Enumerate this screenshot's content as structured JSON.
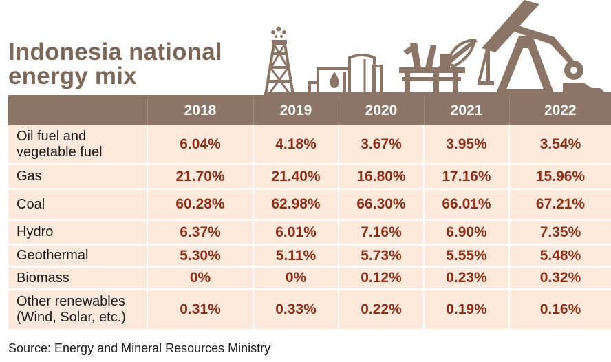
{
  "chart_data": {
    "type": "table",
    "title": [
      "Indonesia national",
      "energy mix"
    ],
    "columns": [
      "2018",
      "2019",
      "2020",
      "2021",
      "2022"
    ],
    "rows": [
      {
        "name": [
          "Oil fuel and",
          "vegetable fuel"
        ],
        "values": [
          "6.04%",
          "4.18%",
          "3.67%",
          "3.95%",
          "3.54%"
        ]
      },
      {
        "name": [
          "Gas"
        ],
        "values": [
          "21.70%",
          "21.40%",
          "16.80%",
          "17.16%",
          "15.96%"
        ]
      },
      {
        "name": [
          "Coal"
        ],
        "values": [
          "60.28%",
          "62.98%",
          "66.30%",
          "66.01%",
          "67.21%"
        ]
      },
      {
        "name": [
          "Hydro"
        ],
        "values": [
          "6.37%",
          "6.01%",
          "7.16%",
          "6.90%",
          "7.35%"
        ]
      },
      {
        "name": [
          "Geothermal"
        ],
        "values": [
          "5.30%",
          "5.11%",
          "5.73%",
          "5.55%",
          "5.48%"
        ]
      },
      {
        "name": [
          "Biomass"
        ],
        "values": [
          "0%",
          "0%",
          "0.12%",
          "0.23%",
          "0.32%"
        ]
      },
      {
        "name": [
          "Other renewables",
          "(Wind, Solar, etc.)"
        ],
        "values": [
          "0.31%",
          "0.33%",
          "0.22%",
          "0.19%",
          "0.16%"
        ]
      }
    ],
    "source": "Source: Energy and Mineral Resources Ministry"
  },
  "colors": {
    "brown": "#8a7566",
    "title_brown": "#7d6858",
    "row_background": "#fde9db",
    "value_text": "#8c2f17"
  },
  "illustration": {
    "icons": [
      "oil-derrick-icon",
      "storage-tanks-icon",
      "offshore-platform-icon",
      "pumpjack-icon"
    ]
  }
}
